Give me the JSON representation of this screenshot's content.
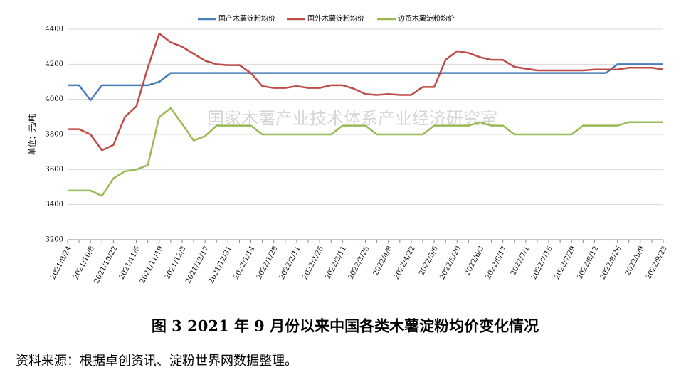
{
  "chart_data": {
    "type": "line",
    "watermark": "国家木薯产业技术体系产业经济研究室",
    "ylabel": "单位：元/吨",
    "caption": "图 3   2021 年 9 月份以来中国各类木薯淀粉均价变化情况",
    "source": "资料来源：根据卓创资讯、淀粉世界网数据整理。",
    "categories": [
      "2021/9/24",
      null,
      "2021/10/8",
      null,
      "2021/10/22",
      null,
      "2021/11/5",
      null,
      "2021/11/19",
      null,
      "2021/12/3",
      null,
      "2021/12/17",
      null,
      "2021/12/31",
      null,
      "2022/1/14",
      null,
      "2022/1/28",
      null,
      "2022/2/11",
      null,
      "2022/2/25",
      null,
      "2022/3/11",
      null,
      "2022/3/25",
      null,
      "2022/4/8",
      null,
      "2022/4/22",
      null,
      "2022/5/6",
      null,
      "2022/5/20",
      null,
      "2022/6/3",
      null,
      "2022/6/17",
      null,
      "2022/7/1",
      null,
      "2022/7/15",
      null,
      "2022/7/29",
      null,
      "2022/8/12",
      null,
      "2022/8/26",
      null,
      "2022/9/9",
      null,
      "2022/9/23"
    ],
    "series": [
      {
        "name": "国产木薯淀粉均价",
        "color": "#4a7ebb",
        "values": [
          4080,
          4080,
          3995,
          4080,
          4080,
          4080,
          4080,
          4080,
          4100,
          4150,
          4150,
          4150,
          4150,
          4150,
          4150,
          4150,
          4150,
          4150,
          4150,
          4150,
          4150,
          4150,
          4150,
          4150,
          4150,
          4150,
          4150,
          4150,
          4150,
          4150,
          4150,
          4150,
          4150,
          4150,
          4150,
          4150,
          4150,
          4150,
          4150,
          4150,
          4150,
          4150,
          4150,
          4150,
          4150,
          4150,
          4150,
          4150,
          4200,
          4200,
          4200,
          4200,
          4200
        ]
      },
      {
        "name": "国外木薯淀粉均价",
        "color": "#be4b48",
        "values": [
          3830,
          3830,
          3800,
          3710,
          3740,
          3900,
          3960,
          4180,
          4375,
          4325,
          4300,
          4260,
          4220,
          4200,
          4195,
          4195,
          4150,
          4075,
          4065,
          4065,
          4075,
          4065,
          4065,
          4080,
          4080,
          4060,
          4030,
          4025,
          4030,
          4025,
          4025,
          4070,
          4070,
          4225,
          4275,
          4265,
          4240,
          4225,
          4225,
          4185,
          4175,
          4165,
          4165,
          4165,
          4165,
          4165,
          4170,
          4170,
          4170,
          4180,
          4180,
          4180,
          4170
        ]
      },
      {
        "name": "边贸木薯淀粉均价",
        "color": "#98b954",
        "values": [
          3480,
          3480,
          3480,
          3450,
          3550,
          3590,
          3600,
          3625,
          3900,
          3950,
          3860,
          3765,
          3790,
          3850,
          3850,
          3850,
          3850,
          3800,
          3800,
          3800,
          3800,
          3800,
          3800,
          3800,
          3850,
          3850,
          3850,
          3800,
          3800,
          3800,
          3800,
          3800,
          3850,
          3850,
          3850,
          3850,
          3870,
          3850,
          3850,
          3800,
          3800,
          3800,
          3800,
          3800,
          3800,
          3850,
          3850,
          3850,
          3850,
          3870,
          3870,
          3870,
          3870
        ]
      }
    ],
    "ylim": [
      3200,
      4400
    ],
    "yticks": [
      3200,
      3400,
      3600,
      3800,
      4000,
      4200,
      4400
    ],
    "grid": true
  }
}
